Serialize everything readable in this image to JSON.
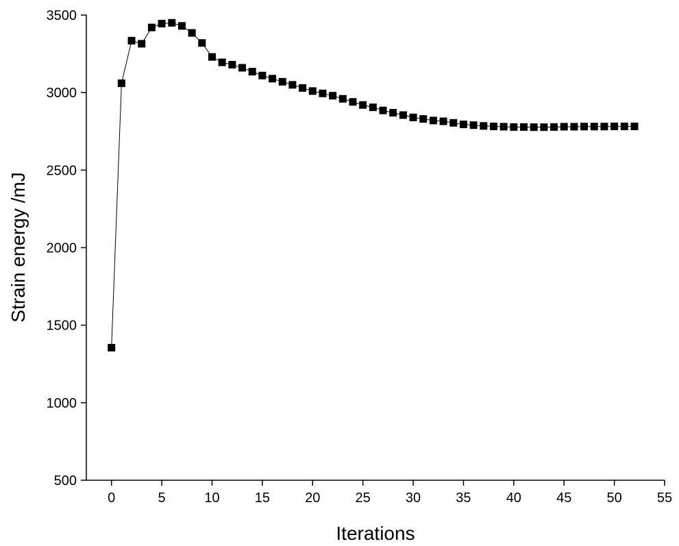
{
  "chart_data": {
    "type": "line",
    "title": "",
    "xlabel": "Iterations",
    "ylabel": "Strain energy /mJ",
    "xlim": [
      -2.5,
      55
    ],
    "ylim": [
      500,
      3500
    ],
    "xticks": [
      0,
      5,
      10,
      15,
      20,
      25,
      30,
      35,
      40,
      45,
      50,
      55
    ],
    "yticks": [
      500,
      1000,
      1500,
      2000,
      2500,
      3000,
      3500
    ],
    "xtick_labels": [
      "0",
      "5",
      "10",
      "15",
      "20",
      "25",
      "30",
      "35",
      "40",
      "45",
      "50",
      "55"
    ],
    "ytick_labels": [
      "500",
      "1000",
      "1500",
      "2000",
      "2500",
      "3000",
      "3500"
    ],
    "grid": false,
    "marker": "square",
    "series": [
      {
        "name": "Strain energy",
        "color": "#000000",
        "x": [
          0,
          1,
          2,
          3,
          4,
          5,
          6,
          7,
          8,
          9,
          10,
          11,
          12,
          13,
          14,
          15,
          16,
          17,
          18,
          19,
          20,
          21,
          22,
          23,
          24,
          25,
          26,
          27,
          28,
          29,
          30,
          31,
          32,
          33,
          34,
          35,
          36,
          37,
          38,
          39,
          40,
          41,
          42,
          43,
          44,
          45,
          46,
          47,
          48,
          49,
          50,
          51,
          52
        ],
        "values": [
          1355,
          3060,
          3335,
          3315,
          3420,
          3445,
          3450,
          3430,
          3385,
          3320,
          3230,
          3195,
          3180,
          3160,
          3135,
          3110,
          3090,
          3070,
          3050,
          3030,
          3010,
          2995,
          2980,
          2960,
          2940,
          2920,
          2905,
          2885,
          2870,
          2855,
          2840,
          2830,
          2820,
          2815,
          2805,
          2795,
          2790,
          2785,
          2782,
          2780,
          2778,
          2778,
          2777,
          2777,
          2778,
          2780,
          2780,
          2781,
          2781,
          2781,
          2782,
          2782,
          2782
        ]
      }
    ]
  }
}
